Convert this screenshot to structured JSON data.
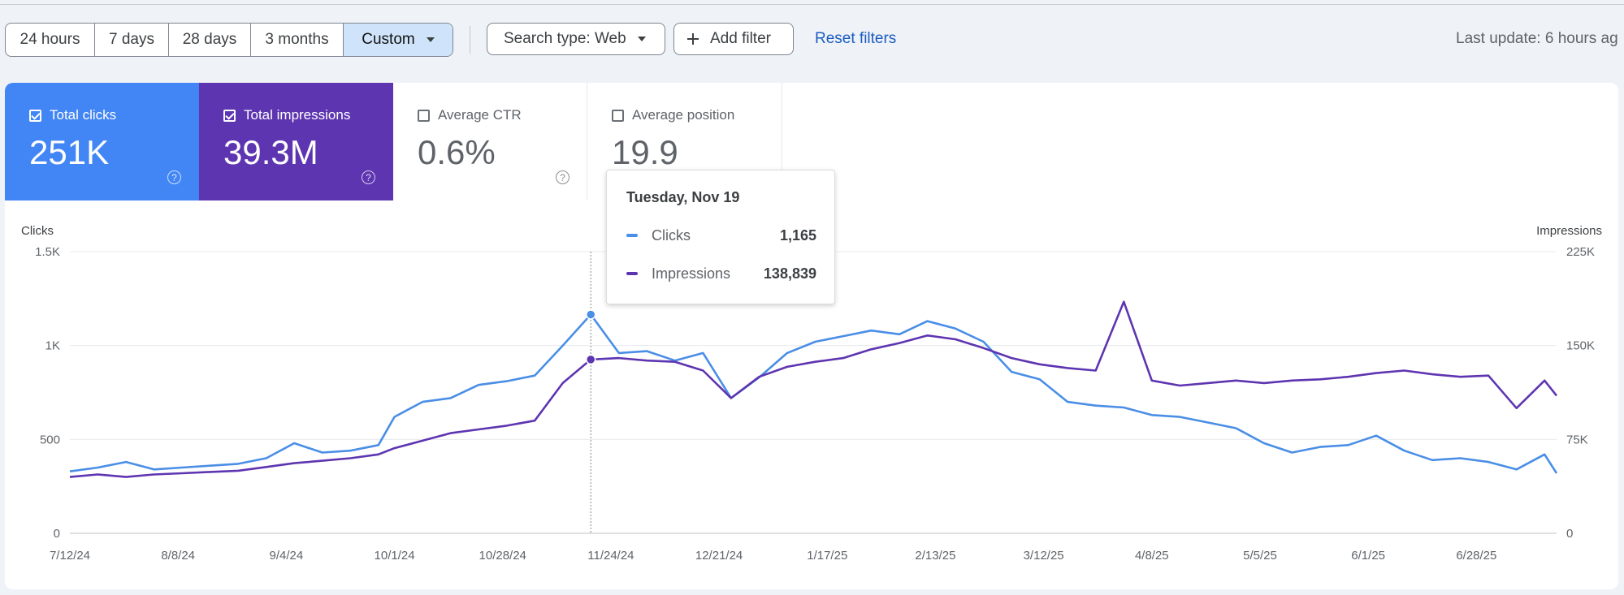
{
  "toolbar": {
    "ranges": [
      "24 hours",
      "7 days",
      "28 days",
      "3 months",
      "Custom"
    ],
    "active_range": "Custom",
    "search_type": "Search type: Web",
    "add_filter": "Add filter",
    "reset_filters": "Reset filters",
    "last_update": "Last update: 6 hours ag"
  },
  "metrics": [
    {
      "label": "Total clicks",
      "value": "251K",
      "checked": true,
      "color": "#4285f4"
    },
    {
      "label": "Total impressions",
      "value": "39.3M",
      "checked": true,
      "color": "#5e35b1"
    },
    {
      "label": "Average CTR",
      "value": "0.6%",
      "checked": false
    },
    {
      "label": "Average position",
      "value": "19.9",
      "checked": false
    }
  ],
  "tooltip": {
    "date": "Tuesday, Nov 19",
    "rows": [
      {
        "name": "Clicks",
        "value": "1,165",
        "color": "#4a8ee6"
      },
      {
        "name": "Impressions",
        "value": "138,839",
        "color": "#5e35b1"
      }
    ]
  },
  "chart_data": {
    "type": "line",
    "ylabel_left": "Clicks",
    "ylabel_right": "Impressions",
    "y_left_ticks": [
      "0",
      "500",
      "1K",
      "1.5K"
    ],
    "y_right_ticks": [
      "0",
      "75K",
      "150K",
      "225K"
    ],
    "ylim_left": [
      0,
      1500
    ],
    "ylim_right": [
      0,
      225000
    ],
    "x_ticks": [
      "7/12/24",
      "8/8/24",
      "9/4/24",
      "10/1/24",
      "10/28/24",
      "11/24/24",
      "12/21/24",
      "1/17/25",
      "2/13/25",
      "3/12/25",
      "4/8/25",
      "5/5/25",
      "6/1/25",
      "6/28/25"
    ],
    "hover_date": "11/19/24",
    "series": [
      {
        "name": "Clicks",
        "axis": "left",
        "color": "#4a8ee6",
        "points": [
          [
            "7/12/24",
            330
          ],
          [
            "7/19/24",
            350
          ],
          [
            "7/26/24",
            380
          ],
          [
            "8/2/24",
            340
          ],
          [
            "8/9/24",
            350
          ],
          [
            "8/16/24",
            360
          ],
          [
            "8/23/24",
            370
          ],
          [
            "8/30/24",
            400
          ],
          [
            "9/6/24",
            480
          ],
          [
            "9/13/24",
            430
          ],
          [
            "9/20/24",
            440
          ],
          [
            "9/27/24",
            470
          ],
          [
            "10/1/24",
            620
          ],
          [
            "10/8/24",
            700
          ],
          [
            "10/15/24",
            720
          ],
          [
            "10/22/24",
            790
          ],
          [
            "10/29/24",
            810
          ],
          [
            "11/5/24",
            840
          ],
          [
            "11/12/24",
            1000
          ],
          [
            "11/19/24",
            1165
          ],
          [
            "11/26/24",
            960
          ],
          [
            "12/3/24",
            970
          ],
          [
            "12/10/24",
            920
          ],
          [
            "12/17/24",
            960
          ],
          [
            "12/24/24",
            720
          ],
          [
            "12/31/24",
            830
          ],
          [
            "1/7/25",
            960
          ],
          [
            "1/14/25",
            1020
          ],
          [
            "1/21/25",
            1050
          ],
          [
            "1/28/25",
            1080
          ],
          [
            "2/4/25",
            1060
          ],
          [
            "2/11/25",
            1130
          ],
          [
            "2/18/25",
            1090
          ],
          [
            "2/25/25",
            1020
          ],
          [
            "3/4/25",
            860
          ],
          [
            "3/11/25",
            820
          ],
          [
            "3/18/25",
            700
          ],
          [
            "3/25/25",
            680
          ],
          [
            "4/1/25",
            670
          ],
          [
            "4/8/25",
            630
          ],
          [
            "4/15/25",
            620
          ],
          [
            "4/22/25",
            590
          ],
          [
            "4/29/25",
            560
          ],
          [
            "5/6/25",
            480
          ],
          [
            "5/13/25",
            430
          ],
          [
            "5/20/25",
            460
          ],
          [
            "5/27/25",
            470
          ],
          [
            "6/3/25",
            520
          ],
          [
            "6/10/25",
            440
          ],
          [
            "6/17/25",
            390
          ],
          [
            "6/24/25",
            400
          ],
          [
            "7/1/25",
            380
          ],
          [
            "7/8/25",
            340
          ],
          [
            "7/15/25",
            420
          ],
          [
            "7/18/25",
            320
          ]
        ]
      },
      {
        "name": "Impressions",
        "axis": "right",
        "color": "#5e35b1",
        "points": [
          [
            "7/12/24",
            45000
          ],
          [
            "7/19/24",
            47000
          ],
          [
            "7/26/24",
            45000
          ],
          [
            "8/2/24",
            47000
          ],
          [
            "8/9/24",
            48000
          ],
          [
            "8/16/24",
            49000
          ],
          [
            "8/23/24",
            50000
          ],
          [
            "8/30/24",
            53000
          ],
          [
            "9/6/24",
            56000
          ],
          [
            "9/13/24",
            58000
          ],
          [
            "9/20/24",
            60000
          ],
          [
            "9/27/24",
            63000
          ],
          [
            "10/1/24",
            68000
          ],
          [
            "10/8/24",
            74000
          ],
          [
            "10/15/24",
            80000
          ],
          [
            "10/22/24",
            83000
          ],
          [
            "10/29/24",
            86000
          ],
          [
            "11/5/24",
            90000
          ],
          [
            "11/12/24",
            120000
          ],
          [
            "11/19/24",
            138839
          ],
          [
            "11/26/24",
            140000
          ],
          [
            "12/3/24",
            138000
          ],
          [
            "12/10/24",
            137000
          ],
          [
            "12/17/24",
            130000
          ],
          [
            "12/24/24",
            108000
          ],
          [
            "12/31/24",
            125000
          ],
          [
            "1/7/25",
            133000
          ],
          [
            "1/14/25",
            137000
          ],
          [
            "1/21/25",
            140000
          ],
          [
            "1/28/25",
            147000
          ],
          [
            "2/4/25",
            152000
          ],
          [
            "2/11/25",
            158000
          ],
          [
            "2/18/25",
            155000
          ],
          [
            "2/25/25",
            148000
          ],
          [
            "3/4/25",
            140000
          ],
          [
            "3/11/25",
            135000
          ],
          [
            "3/18/25",
            132000
          ],
          [
            "3/25/25",
            130000
          ],
          [
            "4/1/25",
            185000
          ],
          [
            "4/8/25",
            122000
          ],
          [
            "4/15/25",
            118000
          ],
          [
            "4/22/25",
            120000
          ],
          [
            "4/29/25",
            122000
          ],
          [
            "5/6/25",
            120000
          ],
          [
            "5/13/25",
            122000
          ],
          [
            "5/20/25",
            123000
          ],
          [
            "5/27/25",
            125000
          ],
          [
            "6/3/25",
            128000
          ],
          [
            "6/10/25",
            130000
          ],
          [
            "6/17/25",
            127000
          ],
          [
            "6/24/25",
            125000
          ],
          [
            "7/1/25",
            126000
          ],
          [
            "7/8/25",
            100000
          ],
          [
            "7/15/25",
            122000
          ],
          [
            "7/18/25",
            110000
          ]
        ]
      }
    ]
  }
}
